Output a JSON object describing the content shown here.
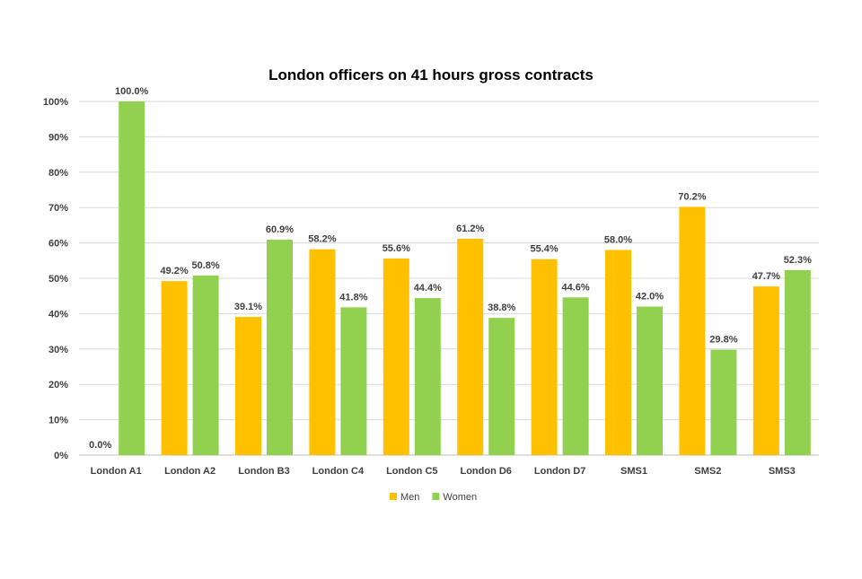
{
  "chart_data": {
    "type": "bar",
    "title": "London officers on 41 hours gross contracts",
    "xlabel": "",
    "ylabel": "",
    "ylim": [
      0,
      100
    ],
    "yticks": [
      0,
      10,
      20,
      30,
      40,
      50,
      60,
      70,
      80,
      90,
      100
    ],
    "ytick_labels": [
      "0%",
      "10%",
      "20%",
      "30%",
      "40%",
      "50%",
      "60%",
      "70%",
      "80%",
      "90%",
      "100%"
    ],
    "categories": [
      "London A1",
      "London A2",
      "London B3",
      "London C4",
      "London C5",
      "London D6",
      "London D7",
      "SMS1",
      "SMS2",
      "SMS3"
    ],
    "series": [
      {
        "name": "Men",
        "color": "#FFC000",
        "values": [
          0.0,
          49.2,
          39.1,
          58.2,
          55.6,
          61.2,
          55.4,
          58.0,
          70.2,
          47.7
        ],
        "labels": [
          "0.0%",
          "49.2%",
          "39.1%",
          "58.2%",
          "55.6%",
          "61.2%",
          "55.4%",
          "58.0%",
          "70.2%",
          "47.7%"
        ]
      },
      {
        "name": "Women",
        "color": "#92D050",
        "values": [
          100.0,
          50.8,
          60.9,
          41.8,
          44.4,
          38.8,
          44.6,
          42.0,
          29.8,
          52.3
        ],
        "labels": [
          "100.0%",
          "50.8%",
          "60.9%",
          "41.8%",
          "44.4%",
          "38.8%",
          "44.6%",
          "42.0%",
          "29.8%",
          "52.3%"
        ]
      }
    ],
    "grid": true,
    "legend_position": "bottom-center"
  }
}
